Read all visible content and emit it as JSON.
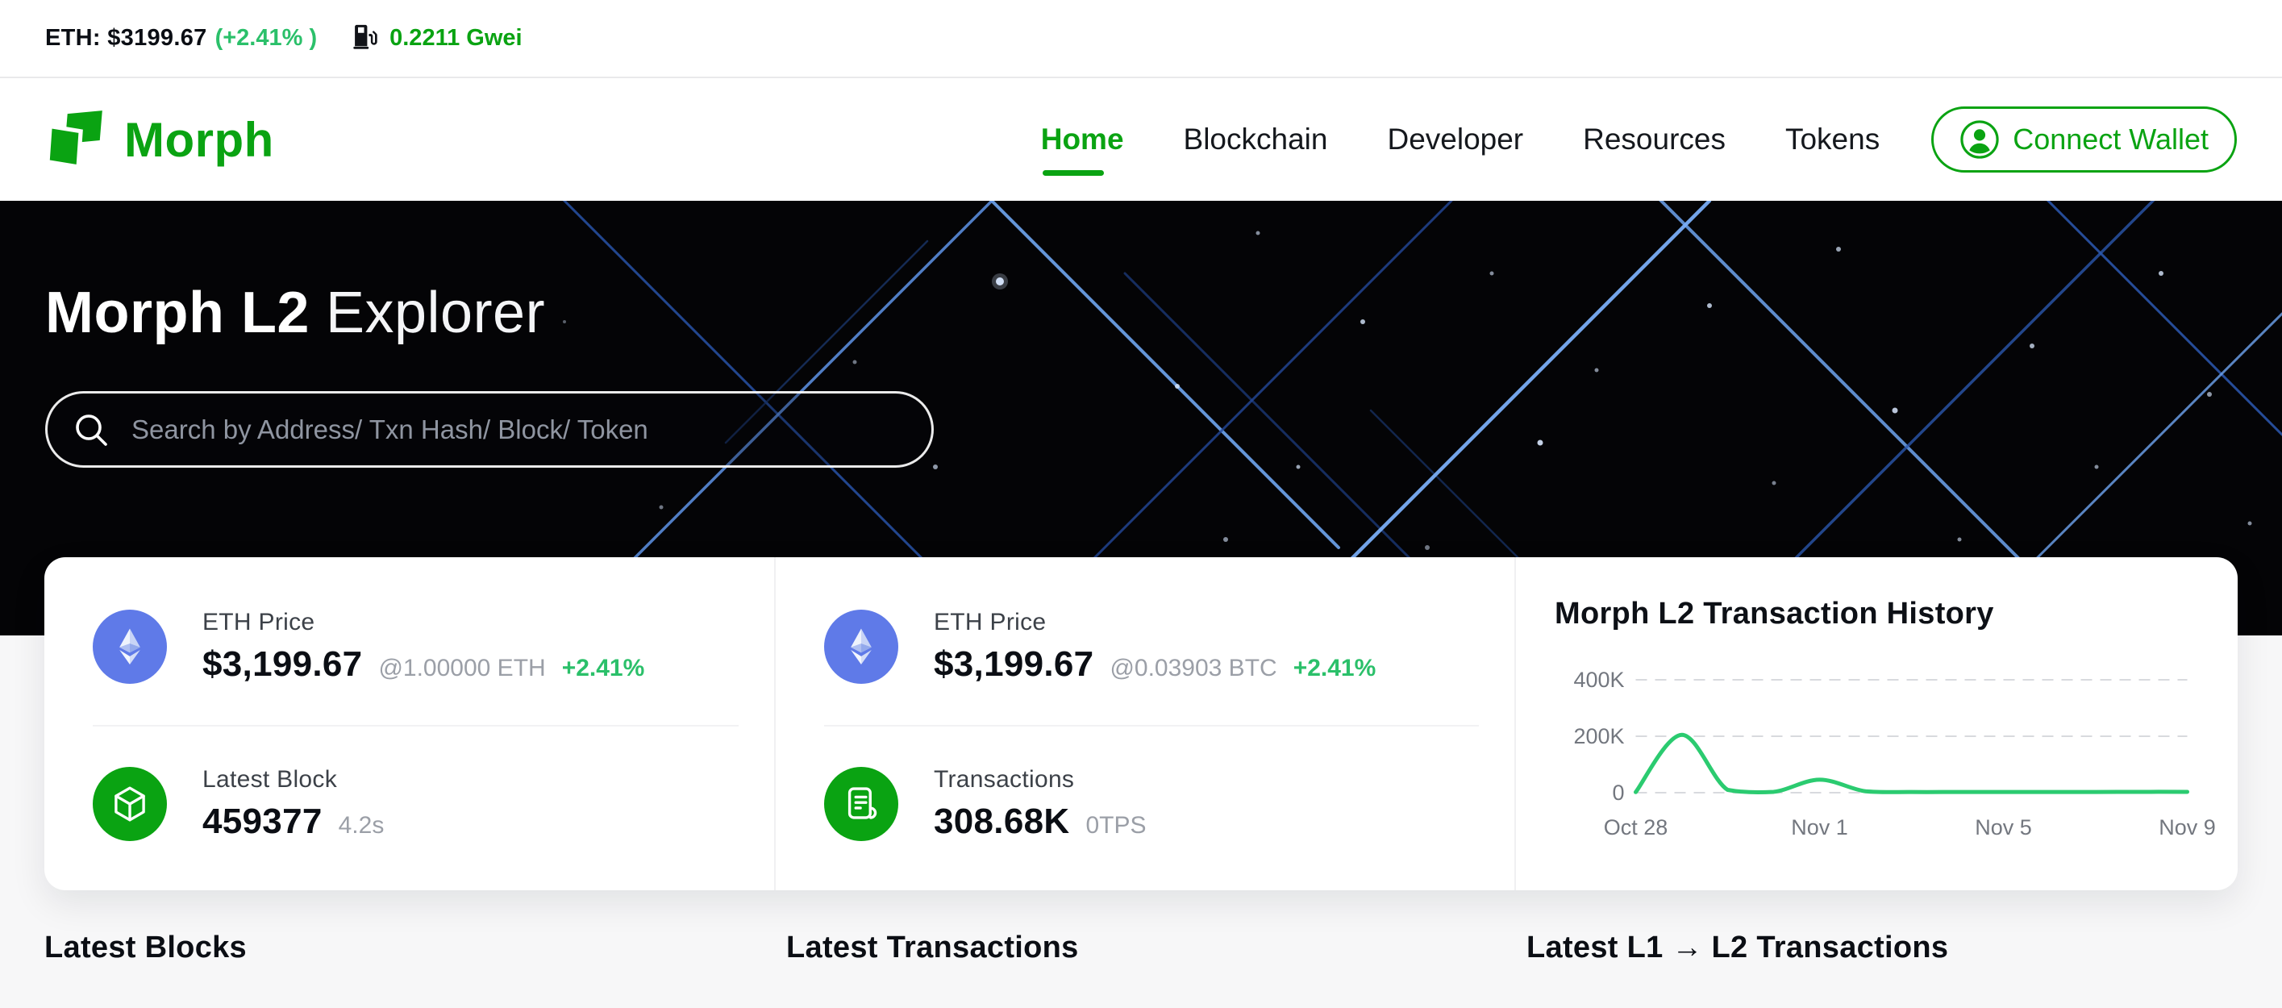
{
  "topbar": {
    "eth_price": "ETH: $3199.67",
    "eth_change": "(+2.41% )",
    "gas_price": "0.2211 Gwei"
  },
  "header": {
    "brand": "Morph",
    "nav": [
      {
        "label": "Home"
      },
      {
        "label": "Blockchain"
      },
      {
        "label": "Developer"
      },
      {
        "label": "Resources"
      },
      {
        "label": "Tokens"
      }
    ],
    "connect_wallet": "Connect Wallet"
  },
  "hero": {
    "title_bold": "Morph L2",
    "title_regular": "Explorer",
    "search_placeholder": "Search by Address/ Txn Hash/ Block/ Token"
  },
  "stats": {
    "eth_price_usd": {
      "label": "ETH Price",
      "value": "$3,199.67",
      "sub": "@1.00000 ETH",
      "change": "+2.41%"
    },
    "latest_block": {
      "label": "Latest Block",
      "value": "459377",
      "sub": "4.2s"
    },
    "eth_price_btc": {
      "label": "ETH Price",
      "value": "$3,199.67",
      "sub": "@0.03903 BTC",
      "change": "+2.41%"
    },
    "transactions": {
      "label": "Transactions",
      "value": "308.68K",
      "sub": "0TPS"
    }
  },
  "chart_data": {
    "type": "line",
    "title": "Morph L2 Transaction History",
    "x": [
      "Oct 28",
      "Oct 29",
      "Oct 30",
      "Oct 31",
      "Nov 1",
      "Nov 2",
      "Nov 3",
      "Nov 4",
      "Nov 5",
      "Nov 6",
      "Nov 7",
      "Nov 8",
      "Nov 9"
    ],
    "values": [
      2000,
      205000,
      10000,
      3000,
      46000,
      5000,
      2500,
      2500,
      2500,
      2500,
      2500,
      3000,
      3000
    ],
    "x_tick_labels": [
      "Oct 28",
      "Nov 1",
      "Nov 5",
      "Nov 9"
    ],
    "y_ticks": [
      0,
      200000,
      400000
    ],
    "y_tick_labels": [
      "0",
      "200K",
      "400K"
    ],
    "ylim": [
      0,
      400000
    ],
    "grid": "horizontal-dashed",
    "legend": false,
    "line_color": "#2bcb70"
  },
  "sections": {
    "latest_blocks": "Latest Blocks",
    "latest_transactions": "Latest Transactions",
    "latest_l1_l2": "Latest L1 → L2 Transactions"
  },
  "colors": {
    "brand_green": "#0aa312",
    "mint_green": "#2bc06a",
    "eth_blue": "#5f7ae8",
    "hero_bg": "#040406",
    "page_bg": "#f7f7f8"
  }
}
